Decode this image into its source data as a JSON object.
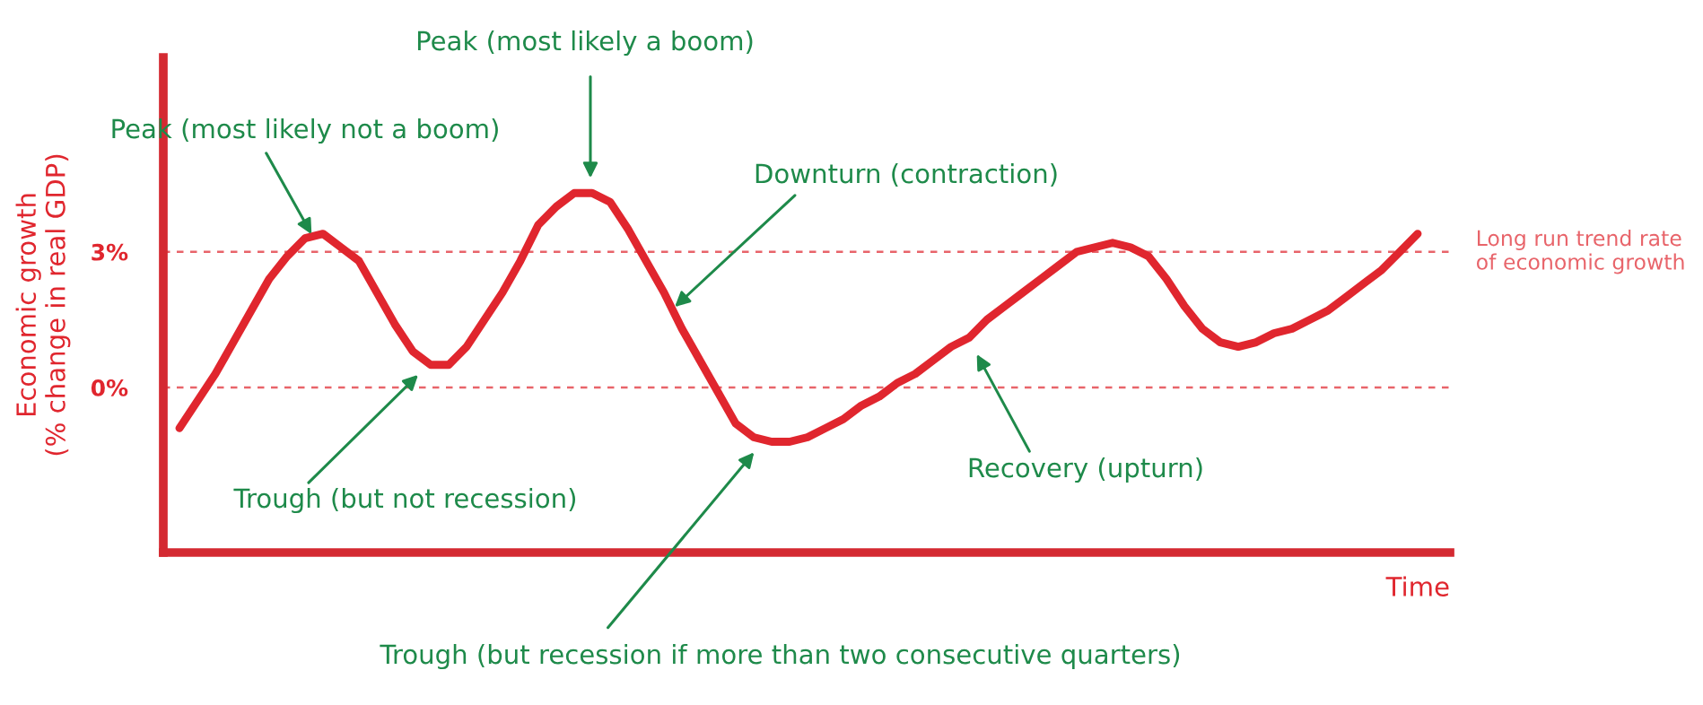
{
  "chart_data": {
    "type": "line",
    "xlabel": "Time",
    "ylabel": "Economic growth\n(% change in real GDP)",
    "categories": [
      null,
      null,
      null,
      null,
      null,
      null,
      null,
      null,
      null,
      null,
      null,
      null,
      null,
      null,
      null,
      null,
      null,
      null,
      null,
      null,
      null,
      null,
      null,
      null,
      null,
      null,
      null,
      null,
      null,
      null,
      null,
      null,
      null,
      null,
      null,
      null,
      null,
      null,
      null,
      null,
      null,
      null,
      null,
      null,
      null,
      null,
      null,
      null,
      null,
      null,
      null,
      null,
      null,
      null,
      null,
      null,
      null,
      null,
      null,
      null,
      null,
      null,
      null,
      null,
      null,
      null,
      null,
      null,
      null,
      null
    ],
    "series": [
      {
        "color": "#e0262e",
        "values": [
          -0.9,
          -0.3,
          0.3,
          1.0,
          1.7,
          2.4,
          2.9,
          3.3,
          3.4,
          3.1,
          2.8,
          2.1,
          1.4,
          0.8,
          0.5,
          0.5,
          0.9,
          1.5,
          2.1,
          2.8,
          3.6,
          4.0,
          4.3,
          4.3,
          4.1,
          3.5,
          2.8,
          2.1,
          1.3,
          0.6,
          -0.1,
          -0.8,
          -1.1,
          -1.2,
          -1.2,
          -1.1,
          -0.9,
          -0.7,
          -0.4,
          -0.2,
          0.1,
          0.3,
          0.6,
          0.9,
          1.1,
          1.5,
          1.8,
          2.1,
          2.4,
          2.7,
          3.0,
          3.1,
          3.2,
          3.1,
          2.9,
          2.4,
          1.8,
          1.3,
          1.0,
          0.9,
          1.0,
          1.2,
          1.3,
          1.5,
          1.7,
          2.0,
          2.3,
          2.6,
          3.0,
          3.4
        ]
      }
    ],
    "ylim": [
      -3.65,
      7.3
    ],
    "yticks": [
      {
        "value": 0,
        "label": "0%"
      },
      {
        "value": 3,
        "label": "3%"
      }
    ],
    "grid": false,
    "ref_lines": [
      {
        "axis": "y",
        "value": 3,
        "label": "Long run trend rate\nof economic growth",
        "color": "#e8646a",
        "line_style": "dashed"
      },
      {
        "axis": "y",
        "value": 0,
        "label": null,
        "color": "#e8646a",
        "line_style": "dashed"
      }
    ],
    "annotations": [
      "Peak (most likely not a boom)",
      "Peak (most likely a boom)",
      "Downturn (contraction)",
      "Trough (but not recession)",
      "Trough (but recession if more than two consecutive quarters)",
      "Recovery (upturn)"
    ]
  }
}
